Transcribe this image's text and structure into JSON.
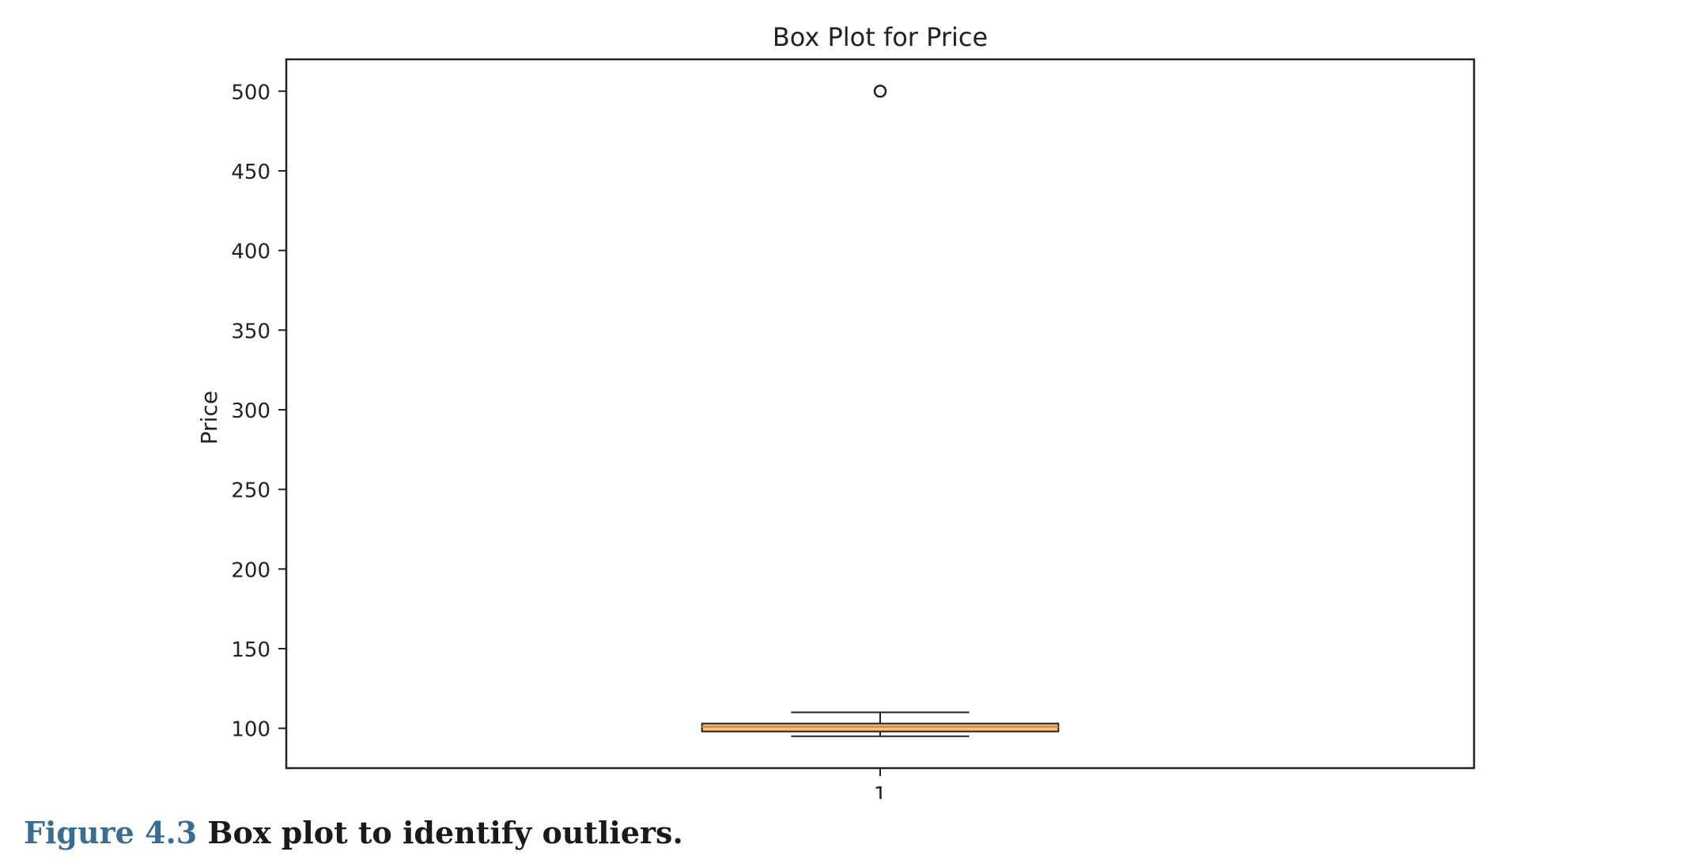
{
  "chart_data": {
    "type": "box",
    "title": "Box Plot for Price",
    "xlabel": "",
    "ylabel": "Price",
    "categories": [
      "1"
    ],
    "yticks": [
      100,
      150,
      200,
      250,
      300,
      350,
      400,
      450,
      500
    ],
    "ylim": [
      75,
      520
    ],
    "grid": false,
    "boxes": [
      {
        "category": "1",
        "whisker_low": 95,
        "q1": 98,
        "median": 101,
        "q3": 103,
        "whisker_high": 110,
        "outliers": [
          500
        ]
      }
    ],
    "colors": {
      "box_fill": "#f5c48a",
      "median_line": "#e8871e",
      "lines": "#222222"
    }
  },
  "caption": {
    "label": "Figure 4.3",
    "text": "Box plot to identify outliers."
  }
}
